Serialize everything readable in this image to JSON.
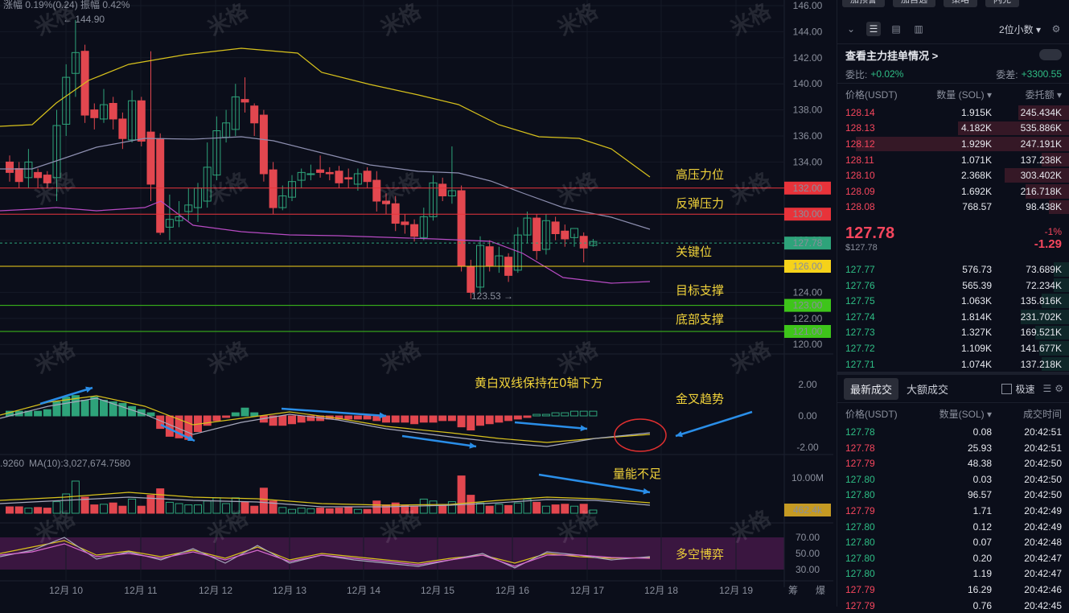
{
  "chart": {
    "ticker_info": "涨幅 0.19%(0.24)  振幅 0.42%",
    "price_axis": [
      "146.00",
      "144.00",
      "142.00",
      "140.00",
      "138.00",
      "136.00",
      "134.00",
      "132.00",
      "130.00",
      "128.00",
      "126.00",
      "124.00",
      "122.00",
      "120.00"
    ],
    "macd_axis": [
      "2.00",
      "0.00",
      "-2.00"
    ],
    "vol_axis": [
      "10.00M"
    ],
    "rsi_axis": [
      "70.00",
      "50.00",
      "30.00"
    ],
    "date_labels": [
      "12月 10",
      "12月 11",
      "12月 12",
      "12月 13",
      "12月 14",
      "12月 15",
      "12月 16",
      "12月 17",
      "12月 18",
      "12月 19"
    ],
    "bottom_icons": [
      "筹",
      "爆"
    ],
    "high_label": "← 144.90",
    "low_label": "123.53 →",
    "vol_ma_label": "MA(10):3,027,674.7580",
    "vol_prefix": ".9260",
    "levels": [
      {
        "label": "132.00",
        "color": "#e8333a",
        "text_color": "#ffffff",
        "annotation": "高压力位"
      },
      {
        "label": "130.00",
        "color": "#e8333a",
        "text_color": "#ffffff",
        "annotation": "反弹压力"
      },
      {
        "label": "127.78",
        "color": "#2ea37a",
        "text_color": "#ffffff",
        "annotation": "关键位"
      },
      {
        "label": "126.00",
        "color": "#f5d21a",
        "text_color": "#111111",
        "annotation": ""
      },
      {
        "label": "123.00",
        "color": "#3ec51a",
        "text_color": "#ffffff",
        "annotation": "目标支撑"
      },
      {
        "label": "121.00",
        "color": "#3ec51a",
        "text_color": "#ffffff",
        "annotation": "底部支撑"
      }
    ],
    "vol_tag": "462.4k",
    "annotations": {
      "macd": "黄白双线保持在0轴下方",
      "golden_cross": "金叉趋势",
      "volume": "量能不足",
      "rsi": "多空博弈"
    },
    "watermark": "米格"
  },
  "panel": {
    "top_tabs": [
      "加预警",
      "加自选",
      "策略",
      "闪兑"
    ],
    "precision": "2位小数 ▾",
    "orderbook_title": "查看主力挂单情况 >",
    "ratio_label": "委比:",
    "ratio_value": "+0.02%",
    "diff_label": "委差:",
    "diff_value": "+3300.55",
    "headers": {
      "price": "价格(USDT)",
      "qty": "数量 (SOL) ▾",
      "total": "委托额 ▾"
    },
    "asks": [
      {
        "price": "128.14",
        "qty": "1.915K",
        "total": "245.434K",
        "depth": 0.22
      },
      {
        "price": "128.13",
        "qty": "4.182K",
        "total": "535.886K",
        "depth": 0.48
      },
      {
        "price": "128.12",
        "qty": "1.929K",
        "total": "247.191K",
        "depth": 0.92
      },
      {
        "price": "128.11",
        "qty": "1.071K",
        "total": "137.238K",
        "depth": 0.12
      },
      {
        "price": "128.10",
        "qty": "2.368K",
        "total": "303.402K",
        "depth": 0.28
      },
      {
        "price": "128.09",
        "qty": "1.692K",
        "total": "216.718K",
        "depth": 0.19
      },
      {
        "price": "128.08",
        "qty": "768.57",
        "total": "98.438K",
        "depth": 0.09
      }
    ],
    "last_price": "127.78",
    "last_price_usd": "$127.78",
    "change_pct": "-1%",
    "change_abs": "-1.29",
    "bids": [
      {
        "price": "127.77",
        "qty": "576.73",
        "total": "73.689K",
        "depth": 0.07
      },
      {
        "price": "127.76",
        "qty": "565.39",
        "total": "72.234K",
        "depth": 0.07
      },
      {
        "price": "127.75",
        "qty": "1.063K",
        "total": "135.816K",
        "depth": 0.12
      },
      {
        "price": "127.74",
        "qty": "1.814K",
        "total": "231.702K",
        "depth": 0.21
      },
      {
        "price": "127.73",
        "qty": "1.327K",
        "total": "169.521K",
        "depth": 0.15
      },
      {
        "price": "127.72",
        "qty": "1.109K",
        "total": "141.677K",
        "depth": 0.13
      },
      {
        "price": "127.71",
        "qty": "1.074K",
        "total": "137.218K",
        "depth": 0.12
      }
    ],
    "trade_tabs": [
      "最新成交",
      "大额成交"
    ],
    "fast_label": "极速",
    "trade_headers": {
      "price": "价格(USDT)",
      "qty": "数量(SOL) ▾",
      "time": "成交时间"
    },
    "trades": [
      {
        "price": "127.78",
        "qty": "0.08",
        "time": "20:42:51",
        "side": "buy"
      },
      {
        "price": "127.78",
        "qty": "25.93",
        "time": "20:42:51",
        "side": "sell"
      },
      {
        "price": "127.79",
        "qty": "48.38",
        "time": "20:42:50",
        "side": "sell"
      },
      {
        "price": "127.80",
        "qty": "0.03",
        "time": "20:42:50",
        "side": "buy"
      },
      {
        "price": "127.80",
        "qty": "96.57",
        "time": "20:42:50",
        "side": "buy"
      },
      {
        "price": "127.79",
        "qty": "1.71",
        "time": "20:42:49",
        "side": "sell"
      },
      {
        "price": "127.80",
        "qty": "0.12",
        "time": "20:42:49",
        "side": "buy"
      },
      {
        "price": "127.80",
        "qty": "0.07",
        "time": "20:42:48",
        "side": "buy"
      },
      {
        "price": "127.80",
        "qty": "0.20",
        "time": "20:42:47",
        "side": "buy"
      },
      {
        "price": "127.80",
        "qty": "1.19",
        "time": "20:42:47",
        "side": "buy"
      },
      {
        "price": "127.79",
        "qty": "16.29",
        "time": "20:42:46",
        "side": "sell"
      },
      {
        "price": "127.79",
        "qty": "0.76",
        "time": "20:42:45",
        "side": "sell"
      }
    ]
  }
}
